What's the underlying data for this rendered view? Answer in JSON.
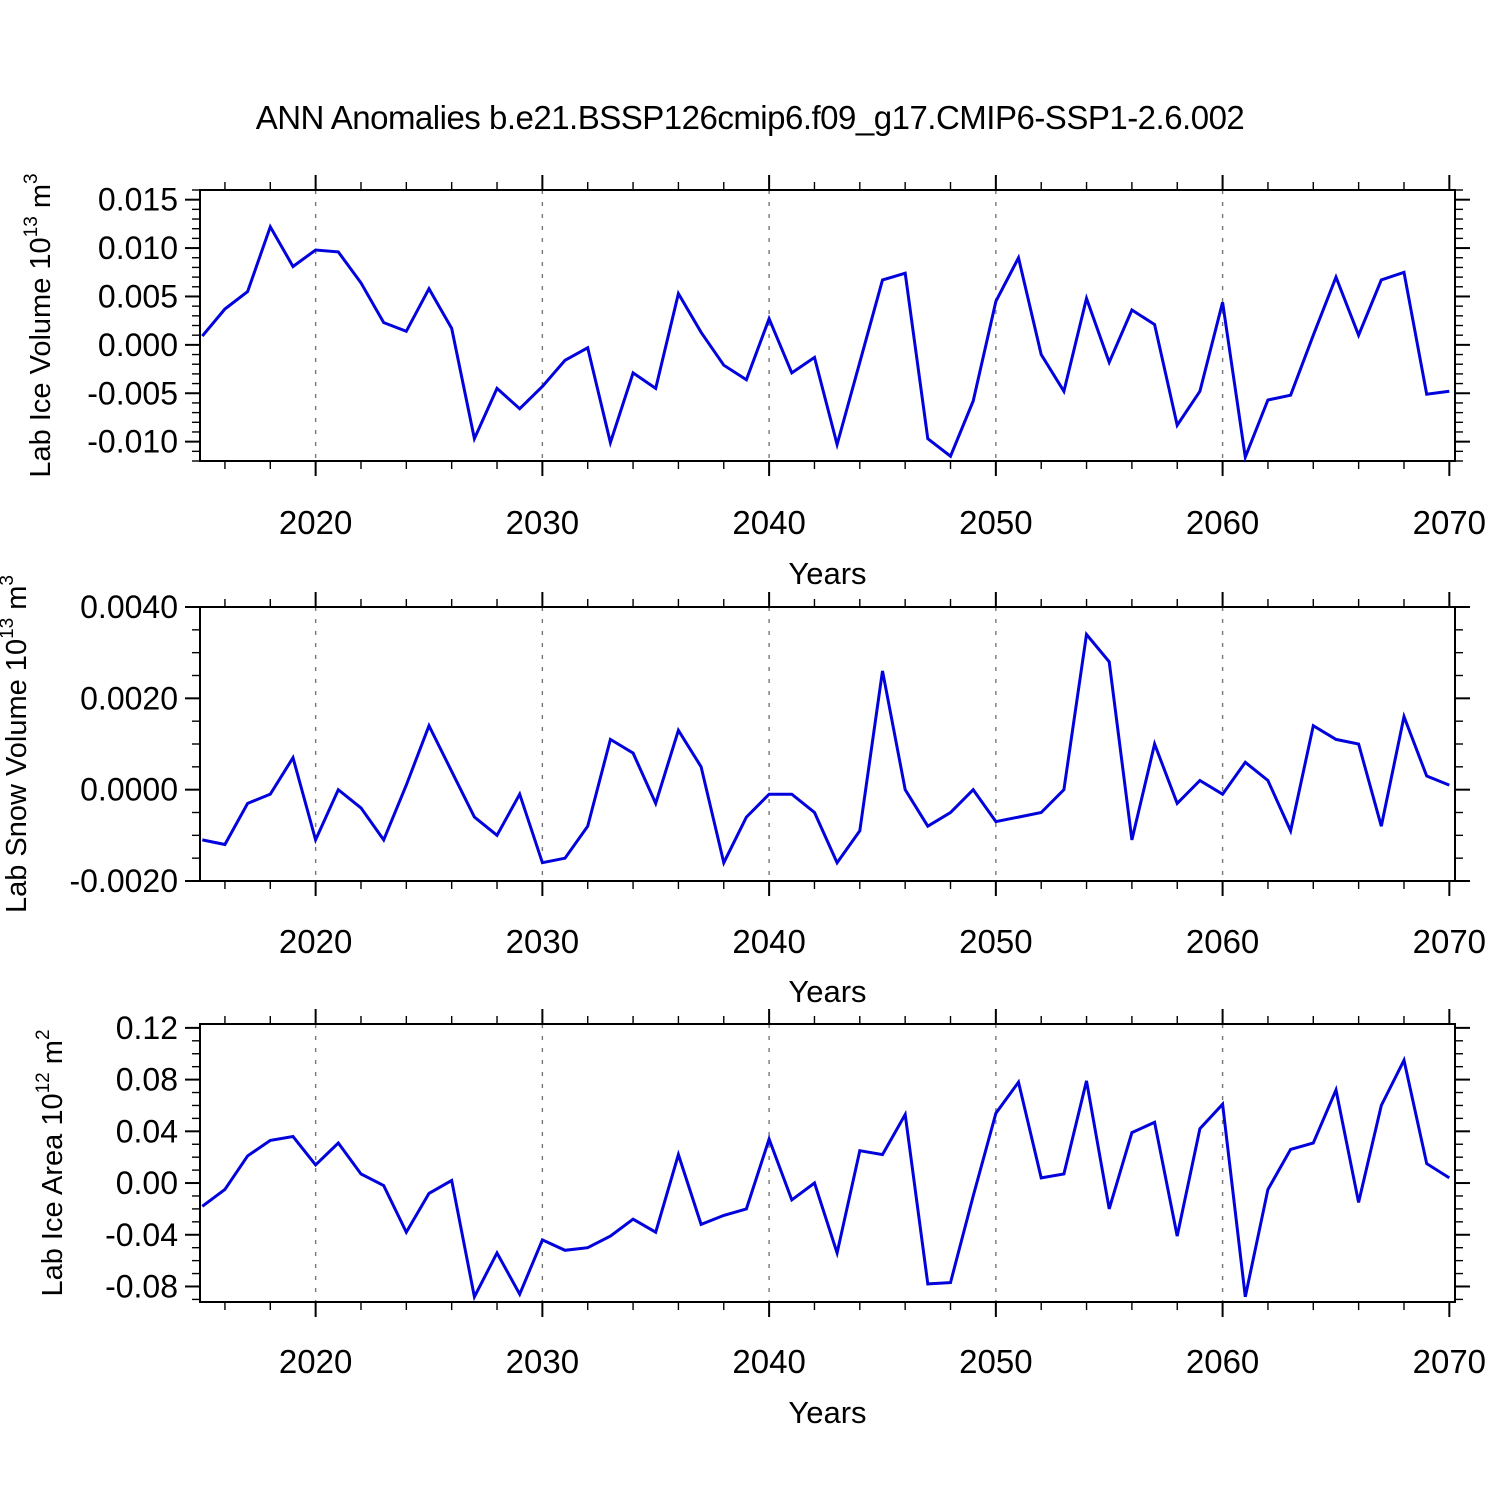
{
  "title": "ANN Anomalies b.e21.BSSP126cmip6.f09_g17.CMIP6-SSP1-2.6.002",
  "line_color": "#0202dd",
  "chart_data": [
    {
      "type": "line",
      "ylabel_parts": [
        "Lab Ice Volume 10",
        "13",
        " m",
        "3"
      ],
      "xlabel": "Years",
      "x": [
        2015,
        2016,
        2017,
        2018,
        2019,
        2020,
        2021,
        2022,
        2023,
        2024,
        2025,
        2026,
        2027,
        2028,
        2029,
        2030,
        2031,
        2032,
        2033,
        2034,
        2035,
        2036,
        2037,
        2038,
        2039,
        2040,
        2041,
        2042,
        2043,
        2044,
        2045,
        2046,
        2047,
        2048,
        2049,
        2050,
        2051,
        2052,
        2053,
        2054,
        2055,
        2056,
        2057,
        2058,
        2059,
        2060,
        2061,
        2062,
        2063,
        2064,
        2065,
        2066,
        2067,
        2068,
        2069,
        2070
      ],
      "values": [
        0.0009,
        0.0037,
        0.0055,
        0.0122,
        0.0081,
        0.0098,
        0.0096,
        0.0064,
        0.0023,
        0.0014,
        0.0058,
        0.0017,
        -0.0097,
        -0.0045,
        -0.0066,
        -0.0043,
        -0.0016,
        -0.0003,
        -0.0101,
        -0.0029,
        -0.0045,
        0.0053,
        0.0013,
        -0.0021,
        -0.0036,
        0.0027,
        -0.0029,
        -0.0013,
        -0.0103,
        -0.0018,
        0.0067,
        0.0074,
        -0.0097,
        -0.0115,
        -0.0058,
        0.0045,
        0.009,
        -0.001,
        -0.0048,
        0.0048,
        -0.0018,
        0.0036,
        0.0021,
        -0.0083,
        -0.0048,
        0.0044,
        -0.0116,
        -0.0057,
        -0.0052,
        0.001,
        0.007,
        0.001,
        0.0067,
        0.0075,
        -0.0051,
        -0.0048
      ],
      "xlim": [
        2014.9,
        2070.25
      ],
      "ylim": [
        -0.012,
        0.016
      ],
      "xticks": [
        2020,
        2030,
        2040,
        2050,
        2060,
        2070
      ],
      "xtick_minor_step": 2,
      "yticks": [
        0.015,
        0.01,
        0.005,
        0,
        -0.005,
        -0.01
      ],
      "ytick_minor_step": 0.001,
      "ytick_decimals": 3,
      "grid_x": [
        2020,
        2030,
        2040,
        2050,
        2060
      ],
      "grid_on": true
    },
    {
      "type": "line",
      "ylabel_parts": [
        "Lab Snow Volume 10",
        "13",
        " m",
        "3"
      ],
      "xlabel": "Years",
      "x": [
        2015,
        2016,
        2017,
        2018,
        2019,
        2020,
        2021,
        2022,
        2023,
        2024,
        2025,
        2026,
        2027,
        2028,
        2029,
        2030,
        2031,
        2032,
        2033,
        2034,
        2035,
        2036,
        2037,
        2038,
        2039,
        2040,
        2041,
        2042,
        2043,
        2044,
        2045,
        2046,
        2047,
        2048,
        2049,
        2050,
        2051,
        2052,
        2053,
        2054,
        2055,
        2056,
        2057,
        2058,
        2059,
        2060,
        2061,
        2062,
        2063,
        2064,
        2065,
        2066,
        2067,
        2068,
        2069,
        2070
      ],
      "values": [
        -0.0011,
        -0.0012,
        -0.0003,
        -0.0001,
        0.0007,
        -0.0011,
        0.0,
        -0.0004,
        -0.0011,
        0.0001,
        0.0014,
        0.0004,
        -0.0006,
        -0.001,
        -0.0001,
        -0.0016,
        -0.0015,
        -0.0008,
        0.0011,
        0.0008,
        -0.0003,
        0.0013,
        0.0005,
        -0.0016,
        -0.0006,
        -0.0001,
        -0.0001,
        -0.0005,
        -0.0016,
        -0.0009,
        0.0026,
        0.0,
        -0.0008,
        -0.0005,
        0.0,
        -0.0007,
        -0.0006,
        -0.0005,
        0.0,
        0.0034,
        0.0028,
        -0.0011,
        0.001,
        -0.0003,
        0.0002,
        -0.0001,
        0.0006,
        0.0002,
        -0.0009,
        0.0014,
        0.0011,
        0.001,
        -0.0008,
        0.0016,
        0.0003,
        0.0001
      ],
      "xlim": [
        2014.9,
        2070.25
      ],
      "ylim": [
        -0.002,
        0.004
      ],
      "xticks": [
        2020,
        2030,
        2040,
        2050,
        2060,
        2070
      ],
      "xtick_minor_step": 2,
      "yticks": [
        0.004,
        0.002,
        0,
        -0.002
      ],
      "ytick_minor_step": 0.0005,
      "ytick_decimals": 4,
      "grid_x": [
        2020,
        2030,
        2040,
        2050,
        2060
      ],
      "grid_on": true
    },
    {
      "type": "line",
      "ylabel_parts": [
        "Lab Ice Area 10",
        "12",
        " m",
        "2"
      ],
      "xlabel": "Years",
      "x": [
        2015,
        2016,
        2017,
        2018,
        2019,
        2020,
        2021,
        2022,
        2023,
        2024,
        2025,
        2026,
        2027,
        2028,
        2029,
        2030,
        2031,
        2032,
        2033,
        2034,
        2035,
        2036,
        2037,
        2038,
        2039,
        2040,
        2041,
        2042,
        2043,
        2044,
        2045,
        2046,
        2047,
        2048,
        2049,
        2050,
        2051,
        2052,
        2053,
        2054,
        2055,
        2056,
        2057,
        2058,
        2059,
        2060,
        2061,
        2062,
        2063,
        2064,
        2065,
        2066,
        2067,
        2068,
        2069,
        2070
      ],
      "values": [
        -0.018,
        -0.005,
        0.021,
        0.033,
        0.036,
        0.014,
        0.031,
        0.007,
        -0.002,
        -0.038,
        -0.008,
        0.002,
        -0.088,
        -0.054,
        -0.086,
        -0.044,
        -0.052,
        -0.05,
        -0.041,
        -0.028,
        -0.038,
        0.022,
        -0.032,
        -0.025,
        -0.02,
        0.034,
        -0.013,
        0.0,
        -0.054,
        0.025,
        0.022,
        0.053,
        -0.078,
        -0.077,
        -0.01,
        0.054,
        0.078,
        0.004,
        0.007,
        0.079,
        -0.02,
        0.039,
        0.047,
        -0.041,
        0.042,
        0.061,
        -0.088,
        -0.005,
        0.026,
        0.031,
        0.072,
        -0.015,
        0.06,
        0.095,
        0.015,
        0.004
      ],
      "xlim": [
        2014.9,
        2070.25
      ],
      "ylim": [
        -0.092,
        0.123
      ],
      "xticks": [
        2020,
        2030,
        2040,
        2050,
        2060,
        2070
      ],
      "xtick_minor_step": 2,
      "yticks": [
        0.12,
        0.08,
        0.04,
        0,
        -0.04,
        -0.08
      ],
      "ytick_minor_step": 0.01,
      "ytick_decimals": 2,
      "grid_x": [
        2020,
        2030,
        2040,
        2050,
        2060
      ],
      "grid_on": true
    }
  ]
}
